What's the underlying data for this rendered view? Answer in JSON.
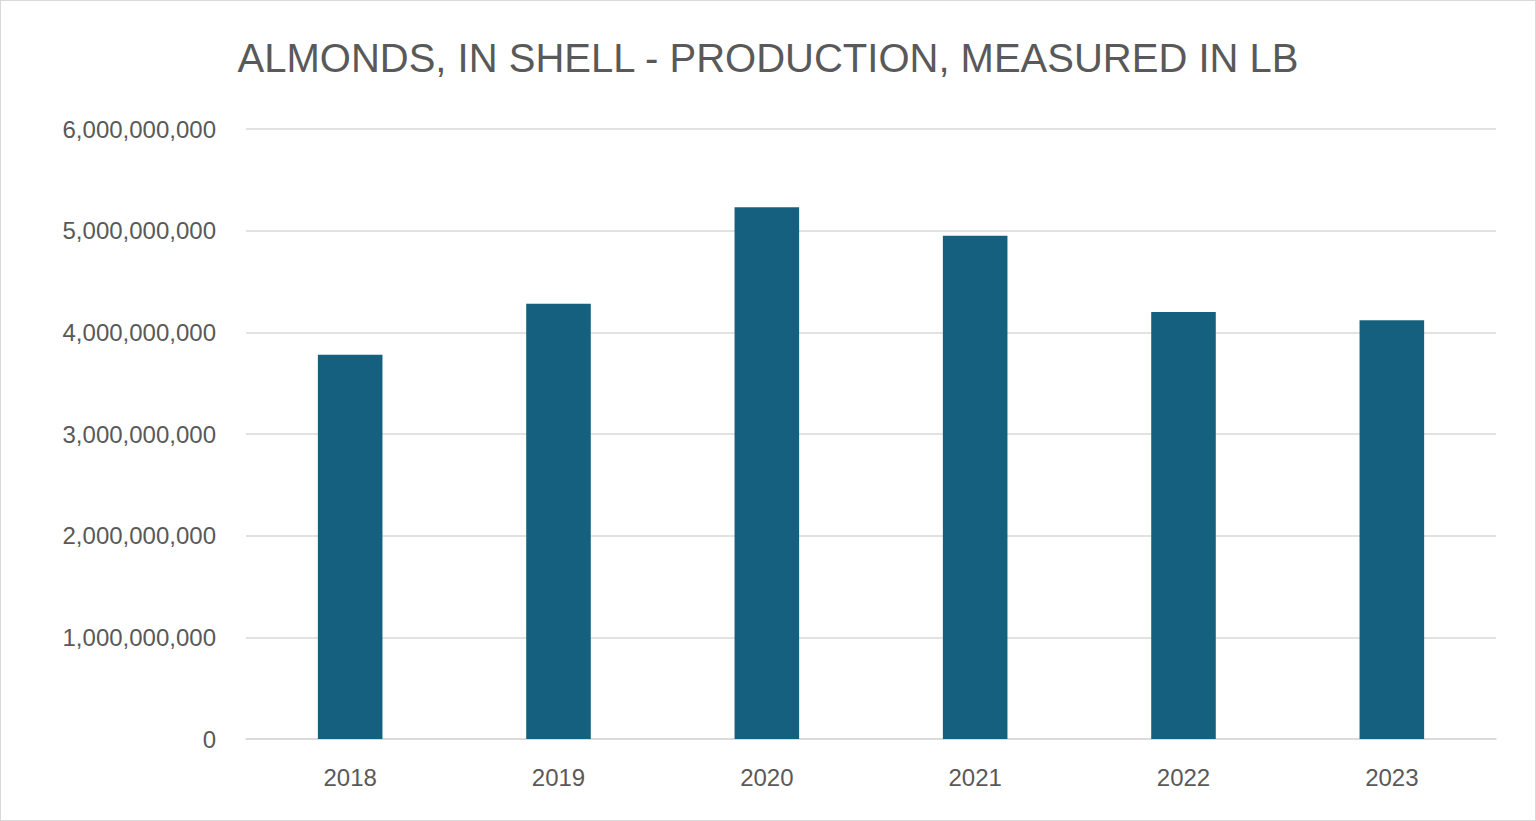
{
  "chart_data": {
    "type": "bar",
    "title": "ALMONDS, IN SHELL - PRODUCTION, MEASURED IN LB",
    "categories": [
      "2018",
      "2019",
      "2020",
      "2021",
      "2022",
      "2023"
    ],
    "values": [
      3780000000,
      4280000000,
      5230000000,
      4950000000,
      4200000000,
      4120000000
    ],
    "color": "#16607f",
    "ylim": [
      0,
      6000000000
    ],
    "yticks": [
      0,
      {
        "value": 1000000000,
        "label": "1,000,000,000"
      },
      {
        "value": 2000000000,
        "label": "2,000,000,000"
      },
      {
        "value": 3000000000,
        "label": "3,000,000,000"
      },
      {
        "value": 4000000000,
        "label": "4,000,000,000"
      },
      {
        "value": 5000000000,
        "label": "5,000,000,000"
      },
      {
        "value": 6000000000,
        "label": "6,000,000,000"
      }
    ],
    "grid": true
  }
}
